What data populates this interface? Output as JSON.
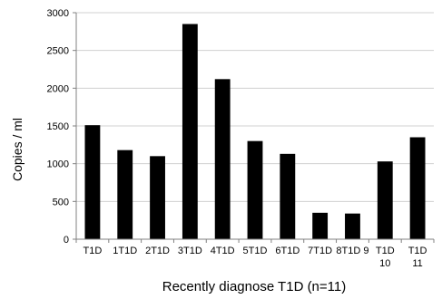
{
  "chart_data": {
    "type": "bar",
    "title": "",
    "xlabel": "Recently diagnose T1D (n=11)",
    "ylabel": "Copies / ml",
    "categories": [
      "T1D 1",
      "T1D 2",
      "T1D 3",
      "T1D 4",
      "T1D 5",
      "T1D 6",
      "T1D 7",
      "T1D 8",
      "T1D 9",
      "T1D 10",
      "T1D 11"
    ],
    "x_tick_lines": [
      [
        "T1D"
      ],
      [
        "1T1D"
      ],
      [
        "2T1D"
      ],
      [
        "3T1D"
      ],
      [
        "4T1D"
      ],
      [
        "5T1D"
      ],
      [
        "6T1D"
      ],
      [
        "7T1D"
      ],
      [
        "8T1D 9"
      ],
      [
        "T1D",
        "10"
      ],
      [
        "T1D",
        "11"
      ]
    ],
    "values": [
      1510,
      1180,
      1100,
      2850,
      2120,
      1300,
      1130,
      350,
      340,
      1030,
      1350
    ],
    "ylim": [
      0,
      3000
    ],
    "yticks": [
      0,
      500,
      1000,
      1500,
      2000,
      2500,
      3000
    ],
    "grid": true,
    "legend": "none",
    "colors": {
      "bar": "#000000",
      "grid": "#d0d0d0",
      "axis": "#808080",
      "text": "#000000"
    }
  }
}
